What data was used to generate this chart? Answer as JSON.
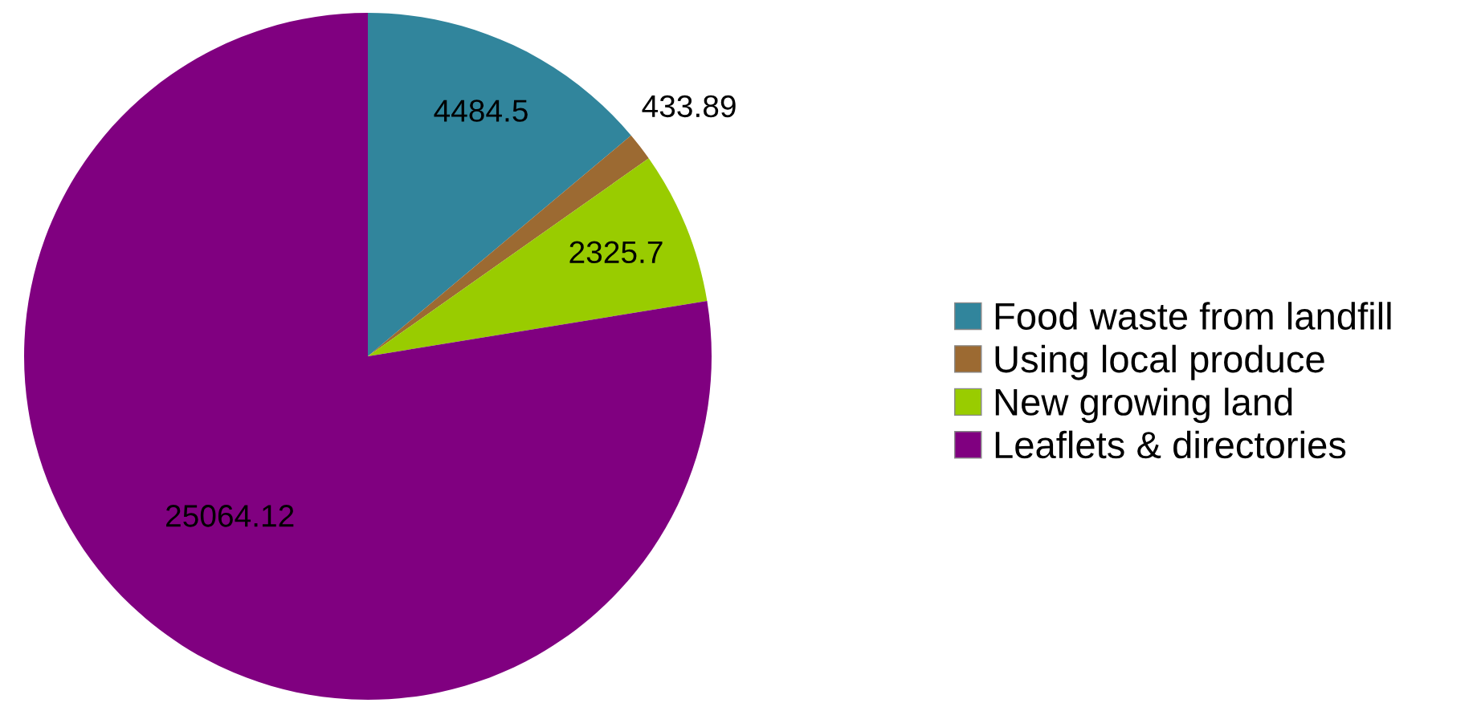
{
  "chart_data": {
    "type": "pie",
    "categories": [
      "Food waste from landfill",
      "Using local produce",
      "New growing land",
      "Leaflets & directories"
    ],
    "values": [
      4484.5,
      433.89,
      2325.7,
      25064.12
    ],
    "colors": [
      "#31859c",
      "#9c6a32",
      "#99cc00",
      "#800080"
    ],
    "data_labels": true,
    "legend": "right"
  }
}
